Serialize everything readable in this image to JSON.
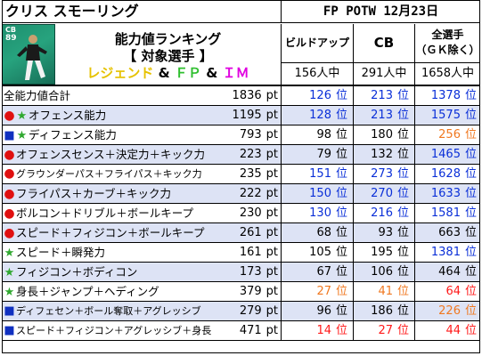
{
  "header": {
    "player_name": "クリス スモーリング",
    "event": "FP POTW 12月23日"
  },
  "card": {
    "position": "CB",
    "rating": "89"
  },
  "ranking": {
    "line1": "能力値ランキング",
    "line2": "【 対象選手 】",
    "line3_a": "レジェンド",
    "line3_b": "&",
    "line3_c": "ＦＰ",
    "line3_d": "&",
    "line3_e": "ＩＭ"
  },
  "columns": [
    {
      "header": "ビルドアップ",
      "count": "156人中"
    },
    {
      "header": "CB",
      "count": "291人中"
    },
    {
      "header": "全選手\n（ＧＫ除く）",
      "header_line1": "全選手",
      "header_line2": "（ＧＫ除く）",
      "count": "1658人中"
    }
  ],
  "units": {
    "pt": "pt",
    "rank": "位"
  },
  "colors": {
    "row_alt": "#dde3f5",
    "blue": "#0a2fd8",
    "orange": "#f07820",
    "red": "#ff1a1a"
  },
  "rows": [
    {
      "label": "全能力値合計",
      "markers": [],
      "pt": "1836",
      "r1": "126",
      "r1c": "blue",
      "r2": "213",
      "r2c": "blue",
      "r3": "1378",
      "r3c": "blue"
    },
    {
      "label": "オフェンス能力",
      "markers": [
        "dot",
        "star"
      ],
      "pt": "1195",
      "r1": "128",
      "r1c": "blue",
      "r2": "213",
      "r2c": "blue",
      "r3": "1575",
      "r3c": "blue"
    },
    {
      "label": "ディフェンス能力",
      "markers": [
        "square",
        "star"
      ],
      "pt": "793",
      "r1": "98",
      "r1c": "black",
      "r2": "180",
      "r2c": "black",
      "r3": "256",
      "r3c": "orange"
    },
    {
      "label": "オフェンスセンス＋決定力＋キック力",
      "markers": [
        "dot"
      ],
      "pt": "223",
      "r1": "79",
      "r1c": "black",
      "r2": "132",
      "r2c": "black",
      "r3": "1465",
      "r3c": "blue"
    },
    {
      "label": "グラウンダーパス＋フライパス＋キック力",
      "markers": [
        "dot"
      ],
      "pt": "235",
      "r1": "151",
      "r1c": "blue",
      "r2": "273",
      "r2c": "blue",
      "r3": "1628",
      "r3c": "blue",
      "small": true
    },
    {
      "label": "フライパス＋カーブ＋キック力",
      "markers": [
        "dot"
      ],
      "pt": "222",
      "r1": "150",
      "r1c": "blue",
      "r2": "270",
      "r2c": "blue",
      "r3": "1633",
      "r3c": "blue"
    },
    {
      "label": "ボルコン＋ドリブル＋ボールキープ",
      "markers": [
        "dot"
      ],
      "pt": "230",
      "r1": "130",
      "r1c": "blue",
      "r2": "216",
      "r2c": "blue",
      "r3": "1581",
      "r3c": "blue"
    },
    {
      "label": "スピード＋フィジコン＋ボールキープ",
      "markers": [
        "dot"
      ],
      "pt": "261",
      "r1": "68",
      "r1c": "black",
      "r2": "93",
      "r2c": "black",
      "r3": "663",
      "r3c": "black"
    },
    {
      "label": "スピード＋瞬発力",
      "markers": [
        "star"
      ],
      "pt": "161",
      "r1": "105",
      "r1c": "black",
      "r2": "195",
      "r2c": "black",
      "r3": "1381",
      "r3c": "blue"
    },
    {
      "label": "フィジコン＋ボディコン",
      "markers": [
        "star"
      ],
      "pt": "173",
      "r1": "67",
      "r1c": "black",
      "r2": "106",
      "r2c": "black",
      "r3": "464",
      "r3c": "black"
    },
    {
      "label": "身長＋ジャンプ＋ヘディング",
      "markers": [
        "star"
      ],
      "pt": "379",
      "r1": "27",
      "r1c": "orange",
      "r2": "41",
      "r2c": "orange",
      "r3": "64",
      "r3c": "red"
    },
    {
      "label": "ディフェセン＋ボール奪取＋アグレッシブ",
      "markers": [
        "square"
      ],
      "pt": "279",
      "r1": "96",
      "r1c": "black",
      "r2": "186",
      "r2c": "black",
      "r3": "226",
      "r3c": "orange",
      "small": true
    },
    {
      "label": "スピード＋フィジコン＋アグレッシブ＋身長",
      "markers": [
        "square"
      ],
      "pt": "471",
      "r1": "14",
      "r1c": "red",
      "r2": "27",
      "r2c": "red",
      "r3": "44",
      "r3c": "red",
      "small": true
    }
  ]
}
